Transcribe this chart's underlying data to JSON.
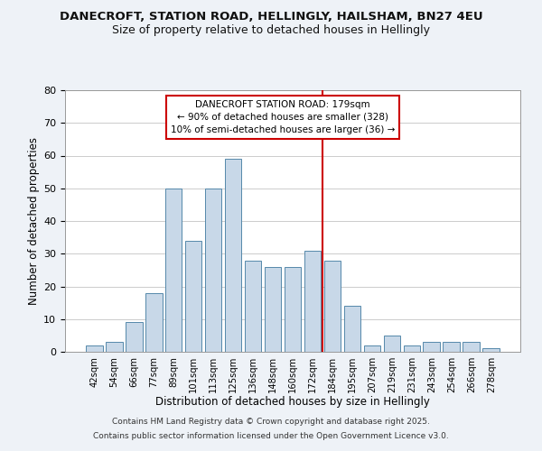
{
  "title": "DANECROFT, STATION ROAD, HELLINGLY, HAILSHAM, BN27 4EU",
  "subtitle": "Size of property relative to detached houses in Hellingly",
  "xlabel": "Distribution of detached houses by size in Hellingly",
  "ylabel": "Number of detached properties",
  "bar_labels": [
    "42sqm",
    "54sqm",
    "66sqm",
    "77sqm",
    "89sqm",
    "101sqm",
    "113sqm",
    "125sqm",
    "136sqm",
    "148sqm",
    "160sqm",
    "172sqm",
    "184sqm",
    "195sqm",
    "207sqm",
    "219sqm",
    "231sqm",
    "243sqm",
    "254sqm",
    "266sqm",
    "278sqm"
  ],
  "bar_values": [
    2,
    3,
    9,
    18,
    50,
    34,
    50,
    59,
    28,
    26,
    26,
    31,
    28,
    14,
    2,
    5,
    2,
    3,
    3,
    3,
    1
  ],
  "bar_color": "#c8d8e8",
  "bar_edge_color": "#5588aa",
  "vline_color": "#cc0000",
  "annotation_title": "DANECROFT STATION ROAD: 179sqm",
  "annotation_line1": "← 90% of detached houses are smaller (328)",
  "annotation_line2": "10% of semi-detached houses are larger (36) →",
  "ylim": [
    0,
    80
  ],
  "yticks": [
    0,
    10,
    20,
    30,
    40,
    50,
    60,
    70,
    80
  ],
  "footer_line1": "Contains HM Land Registry data © Crown copyright and database right 2025.",
  "footer_line2": "Contains public sector information licensed under the Open Government Licence v3.0.",
  "bg_color": "#eef2f7",
  "plot_bg_color": "#ffffff",
  "grid_color": "#cccccc"
}
